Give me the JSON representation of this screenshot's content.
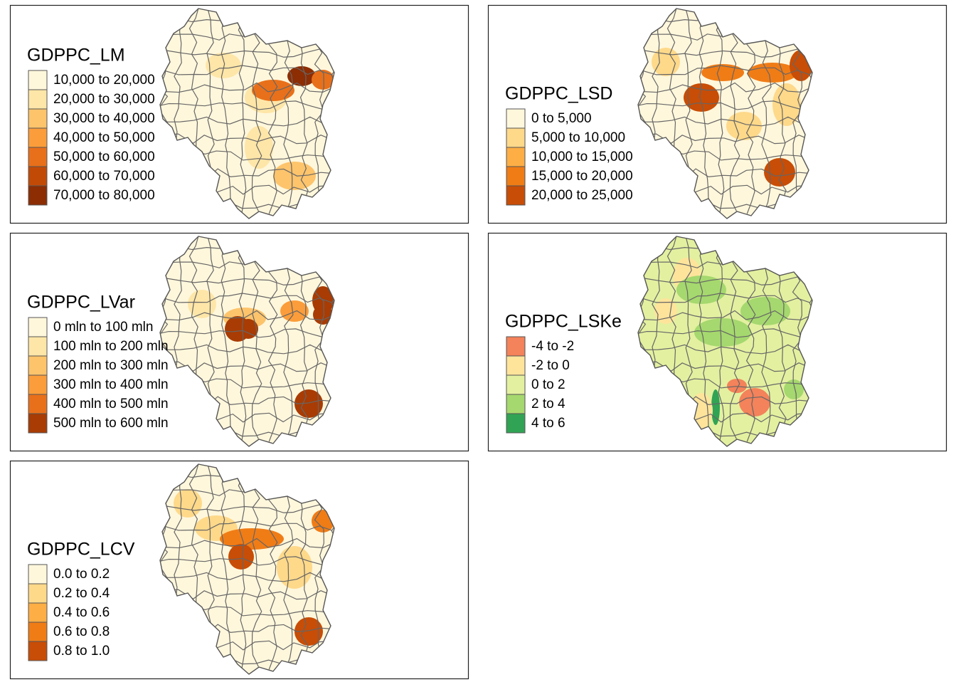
{
  "panels": [
    {
      "title": "GDPPC_LM",
      "legend": [
        {
          "label": "10,000 to 20,000",
          "color": "#fff7dc"
        },
        {
          "label": "20,000 to 30,000",
          "color": "#fee6a8"
        },
        {
          "label": "30,000 to 40,000",
          "color": "#fdc46c"
        },
        {
          "label": "40,000 to 50,000",
          "color": "#fb9d3a"
        },
        {
          "label": "50,000 to 60,000",
          "color": "#e8701a"
        },
        {
          "label": "60,000 to 70,000",
          "color": "#c24a07"
        },
        {
          "label": "70,000 to 80,000",
          "color": "#8c2d04"
        }
      ]
    },
    {
      "title": "GDPPC_LSD",
      "legend": [
        {
          "label": "0 to 5,000",
          "color": "#fff7dc"
        },
        {
          "label": "5,000 to 10,000",
          "color": "#fed98a"
        },
        {
          "label": "10,000 to 15,000",
          "color": "#fdae45"
        },
        {
          "label": "15,000 to 20,000",
          "color": "#f07c16"
        },
        {
          "label": "20,000 to 25,000",
          "color": "#c84d06"
        }
      ]
    },
    {
      "title": "GDPPC_LVar",
      "legend": [
        {
          "label": "0 mln to 100 mln",
          "color": "#fff7dc"
        },
        {
          "label": "100 mln to 200 mln",
          "color": "#fee6a8"
        },
        {
          "label": "200 mln to 300 mln",
          "color": "#fdc46c"
        },
        {
          "label": "300 mln to 400 mln",
          "color": "#fb9d3a"
        },
        {
          "label": "400 mln to 500 mln",
          "color": "#e8701a"
        },
        {
          "label": "500 mln to 600 mln",
          "color": "#a83c04"
        }
      ]
    },
    {
      "title": "GDPPC_LSKe",
      "legend": [
        {
          "label": "-4 to -2",
          "color": "#f4825a"
        },
        {
          "label": "-2 to 0",
          "color": "#fee49b"
        },
        {
          "label": "0 to 2",
          "color": "#e3f0a0"
        },
        {
          "label": "2 to 4",
          "color": "#a5d86e"
        },
        {
          "label": "4 to 6",
          "color": "#31a354"
        }
      ]
    },
    {
      "title": "GDPPC_LCV",
      "legend": [
        {
          "label": "0.0 to 0.2",
          "color": "#fff7dc"
        },
        {
          "label": "0.2 to 0.4",
          "color": "#fed98a"
        },
        {
          "label": "0.4 to 0.6",
          "color": "#fdae45"
        },
        {
          "label": "0.6 to 0.8",
          "color": "#f07c16"
        },
        {
          "label": "0.8 to 1.0",
          "color": "#c84d06"
        }
      ]
    }
  ]
}
